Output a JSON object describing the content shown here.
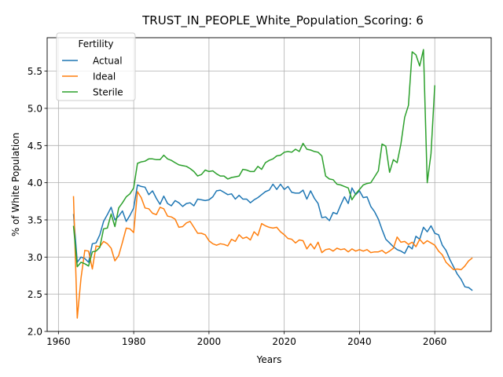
{
  "chart_data": {
    "type": "line",
    "title": "TRUST_IN_PEOPLE_White_Population_Scoring: 6",
    "xlabel": "Years",
    "ylabel": "% of White Population",
    "xlim": [
      1957,
      2075
    ],
    "ylim": [
      2.0,
      5.95
    ],
    "xticks": [
      1960,
      1980,
      2000,
      2020,
      2040,
      2060
    ],
    "yticks": [
      2.0,
      2.5,
      3.0,
      3.5,
      4.0,
      4.5,
      5.0,
      5.5
    ],
    "grid": true,
    "legend": {
      "title": "Fertility",
      "placement": "top-left"
    },
    "series": [
      {
        "name": "Actual",
        "color": "#1f77b4",
        "points": [
          [
            1964,
            3.58
          ],
          [
            1965,
            2.93
          ],
          [
            1966,
            3.0
          ],
          [
            1967,
            2.98
          ],
          [
            1968,
            2.93
          ],
          [
            1969,
            3.18
          ],
          [
            1970,
            3.19
          ],
          [
            1971,
            3.3
          ],
          [
            1972,
            3.48
          ],
          [
            1973,
            3.57
          ],
          [
            1974,
            3.67
          ],
          [
            1975,
            3.5
          ],
          [
            1976,
            3.55
          ],
          [
            1977,
            3.62
          ],
          [
            1978,
            3.48
          ],
          [
            1979,
            3.56
          ],
          [
            1980,
            3.66
          ],
          [
            1981,
            3.97
          ],
          [
            1982,
            3.95
          ],
          [
            1983,
            3.94
          ],
          [
            1984,
            3.84
          ],
          [
            1985,
            3.89
          ],
          [
            1986,
            3.79
          ],
          [
            1987,
            3.71
          ],
          [
            1988,
            3.82
          ],
          [
            1989,
            3.72
          ],
          [
            1990,
            3.69
          ],
          [
            1991,
            3.76
          ],
          [
            1992,
            3.73
          ],
          [
            1993,
            3.68
          ],
          [
            1994,
            3.72
          ],
          [
            1995,
            3.73
          ],
          [
            1996,
            3.69
          ],
          [
            1997,
            3.78
          ],
          [
            1998,
            3.77
          ],
          [
            1999,
            3.76
          ],
          [
            2000,
            3.77
          ],
          [
            2001,
            3.81
          ],
          [
            2002,
            3.89
          ],
          [
            2003,
            3.9
          ],
          [
            2004,
            3.87
          ],
          [
            2005,
            3.84
          ],
          [
            2006,
            3.85
          ],
          [
            2007,
            3.78
          ],
          [
            2008,
            3.83
          ],
          [
            2009,
            3.78
          ],
          [
            2010,
            3.78
          ],
          [
            2011,
            3.73
          ],
          [
            2012,
            3.77
          ],
          [
            2013,
            3.8
          ],
          [
            2014,
            3.84
          ],
          [
            2015,
            3.88
          ],
          [
            2016,
            3.9
          ],
          [
            2017,
            3.98
          ],
          [
            2018,
            3.91
          ],
          [
            2019,
            3.98
          ],
          [
            2020,
            3.91
          ],
          [
            2021,
            3.95
          ],
          [
            2022,
            3.87
          ],
          [
            2023,
            3.86
          ],
          [
            2024,
            3.86
          ],
          [
            2025,
            3.9
          ],
          [
            2026,
            3.78
          ],
          [
            2027,
            3.89
          ],
          [
            2028,
            3.79
          ],
          [
            2029,
            3.72
          ],
          [
            2030,
            3.53
          ],
          [
            2031,
            3.54
          ],
          [
            2032,
            3.49
          ],
          [
            2033,
            3.6
          ],
          [
            2034,
            3.58
          ],
          [
            2035,
            3.7
          ],
          [
            2036,
            3.81
          ],
          [
            2037,
            3.72
          ],
          [
            2038,
            3.93
          ],
          [
            2039,
            3.84
          ],
          [
            2040,
            3.89
          ],
          [
            2041,
            3.8
          ],
          [
            2042,
            3.81
          ],
          [
            2043,
            3.68
          ],
          [
            2044,
            3.61
          ],
          [
            2045,
            3.51
          ],
          [
            2046,
            3.37
          ],
          [
            2047,
            3.24
          ],
          [
            2048,
            3.19
          ],
          [
            2049,
            3.14
          ],
          [
            2050,
            3.1
          ],
          [
            2051,
            3.08
          ],
          [
            2052,
            3.05
          ],
          [
            2053,
            3.15
          ],
          [
            2054,
            3.11
          ],
          [
            2055,
            3.28
          ],
          [
            2056,
            3.24
          ],
          [
            2057,
            3.4
          ],
          [
            2058,
            3.34
          ],
          [
            2059,
            3.42
          ],
          [
            2060,
            3.32
          ],
          [
            2061,
            3.3
          ],
          [
            2062,
            3.16
          ],
          [
            2063,
            3.09
          ],
          [
            2064,
            2.97
          ],
          [
            2065,
            2.87
          ],
          [
            2066,
            2.77
          ],
          [
            2067,
            2.7
          ],
          [
            2068,
            2.6
          ],
          [
            2069,
            2.59
          ],
          [
            2070,
            2.55
          ]
        ]
      },
      {
        "name": "Ideal",
        "color": "#ff7f0e",
        "points": [
          [
            1964,
            3.82
          ],
          [
            1965,
            2.18
          ],
          [
            1966,
            2.72
          ],
          [
            1967,
            3.09
          ],
          [
            1968,
            3.08
          ],
          [
            1969,
            2.84
          ],
          [
            1970,
            3.15
          ],
          [
            1971,
            3.14
          ],
          [
            1972,
            3.21
          ],
          [
            1973,
            3.18
          ],
          [
            1974,
            3.12
          ],
          [
            1975,
            2.95
          ],
          [
            1976,
            3.02
          ],
          [
            1977,
            3.2
          ],
          [
            1978,
            3.39
          ],
          [
            1979,
            3.38
          ],
          [
            1980,
            3.33
          ],
          [
            1981,
            3.88
          ],
          [
            1982,
            3.8
          ],
          [
            1983,
            3.66
          ],
          [
            1984,
            3.65
          ],
          [
            1985,
            3.59
          ],
          [
            1986,
            3.57
          ],
          [
            1987,
            3.67
          ],
          [
            1988,
            3.65
          ],
          [
            1989,
            3.55
          ],
          [
            1990,
            3.54
          ],
          [
            1991,
            3.51
          ],
          [
            1992,
            3.4
          ],
          [
            1993,
            3.41
          ],
          [
            1994,
            3.46
          ],
          [
            1995,
            3.48
          ],
          [
            1996,
            3.4
          ],
          [
            1997,
            3.32
          ],
          [
            1998,
            3.32
          ],
          [
            1999,
            3.3
          ],
          [
            2000,
            3.22
          ],
          [
            2001,
            3.18
          ],
          [
            2002,
            3.16
          ],
          [
            2003,
            3.18
          ],
          [
            2004,
            3.17
          ],
          [
            2005,
            3.15
          ],
          [
            2006,
            3.24
          ],
          [
            2007,
            3.21
          ],
          [
            2008,
            3.3
          ],
          [
            2009,
            3.25
          ],
          [
            2010,
            3.27
          ],
          [
            2011,
            3.23
          ],
          [
            2012,
            3.34
          ],
          [
            2013,
            3.29
          ],
          [
            2014,
            3.45
          ],
          [
            2015,
            3.42
          ],
          [
            2016,
            3.4
          ],
          [
            2017,
            3.39
          ],
          [
            2018,
            3.4
          ],
          [
            2019,
            3.34
          ],
          [
            2020,
            3.3
          ],
          [
            2021,
            3.25
          ],
          [
            2022,
            3.24
          ],
          [
            2023,
            3.19
          ],
          [
            2024,
            3.23
          ],
          [
            2025,
            3.22
          ],
          [
            2026,
            3.11
          ],
          [
            2027,
            3.18
          ],
          [
            2028,
            3.11
          ],
          [
            2029,
            3.2
          ],
          [
            2030,
            3.06
          ],
          [
            2031,
            3.1
          ],
          [
            2032,
            3.11
          ],
          [
            2033,
            3.08
          ],
          [
            2034,
            3.12
          ],
          [
            2035,
            3.1
          ],
          [
            2036,
            3.11
          ],
          [
            2037,
            3.07
          ],
          [
            2038,
            3.11
          ],
          [
            2039,
            3.08
          ],
          [
            2040,
            3.1
          ],
          [
            2041,
            3.08
          ],
          [
            2042,
            3.1
          ],
          [
            2043,
            3.06
          ],
          [
            2044,
            3.07
          ],
          [
            2045,
            3.07
          ],
          [
            2046,
            3.09
          ],
          [
            2047,
            3.05
          ],
          [
            2048,
            3.08
          ],
          [
            2049,
            3.12
          ],
          [
            2050,
            3.27
          ],
          [
            2051,
            3.2
          ],
          [
            2052,
            3.21
          ],
          [
            2053,
            3.17
          ],
          [
            2054,
            3.2
          ],
          [
            2055,
            3.14
          ],
          [
            2056,
            3.24
          ],
          [
            2057,
            3.18
          ],
          [
            2058,
            3.22
          ],
          [
            2059,
            3.19
          ],
          [
            2060,
            3.16
          ],
          [
            2061,
            3.08
          ],
          [
            2062,
            3.03
          ],
          [
            2063,
            2.93
          ],
          [
            2064,
            2.88
          ],
          [
            2065,
            2.83
          ],
          [
            2066,
            2.84
          ],
          [
            2067,
            2.83
          ],
          [
            2068,
            2.88
          ],
          [
            2069,
            2.95
          ],
          [
            2070,
            2.99
          ]
        ]
      },
      {
        "name": "Sterile",
        "color": "#2ca02c",
        "points": [
          [
            1964,
            3.42
          ],
          [
            1965,
            2.87
          ],
          [
            1966,
            2.93
          ],
          [
            1967,
            2.91
          ],
          [
            1968,
            2.88
          ],
          [
            1969,
            3.07
          ],
          [
            1970,
            3.08
          ],
          [
            1971,
            3.13
          ],
          [
            1972,
            3.38
          ],
          [
            1973,
            3.39
          ],
          [
            1974,
            3.58
          ],
          [
            1975,
            3.41
          ],
          [
            1976,
            3.66
          ],
          [
            1977,
            3.73
          ],
          [
            1978,
            3.81
          ],
          [
            1979,
            3.85
          ],
          [
            1980,
            3.93
          ],
          [
            1981,
            4.26
          ],
          [
            1982,
            4.28
          ],
          [
            1983,
            4.29
          ],
          [
            1984,
            4.32
          ],
          [
            1985,
            4.32
          ],
          [
            1986,
            4.31
          ],
          [
            1987,
            4.31
          ],
          [
            1988,
            4.37
          ],
          [
            1989,
            4.32
          ],
          [
            1990,
            4.3
          ],
          [
            1991,
            4.27
          ],
          [
            1992,
            4.24
          ],
          [
            1993,
            4.23
          ],
          [
            1994,
            4.22
          ],
          [
            1995,
            4.19
          ],
          [
            1996,
            4.15
          ],
          [
            1997,
            4.09
          ],
          [
            1998,
            4.11
          ],
          [
            1999,
            4.17
          ],
          [
            2000,
            4.15
          ],
          [
            2001,
            4.16
          ],
          [
            2002,
            4.12
          ],
          [
            2003,
            4.09
          ],
          [
            2004,
            4.09
          ],
          [
            2005,
            4.05
          ],
          [
            2006,
            4.07
          ],
          [
            2007,
            4.08
          ],
          [
            2008,
            4.09
          ],
          [
            2009,
            4.18
          ],
          [
            2010,
            4.17
          ],
          [
            2011,
            4.15
          ],
          [
            2012,
            4.15
          ],
          [
            2013,
            4.22
          ],
          [
            2014,
            4.18
          ],
          [
            2015,
            4.27
          ],
          [
            2016,
            4.3
          ],
          [
            2017,
            4.32
          ],
          [
            2018,
            4.36
          ],
          [
            2019,
            4.37
          ],
          [
            2020,
            4.41
          ],
          [
            2021,
            4.42
          ],
          [
            2022,
            4.41
          ],
          [
            2023,
            4.45
          ],
          [
            2024,
            4.42
          ],
          [
            2025,
            4.53
          ],
          [
            2026,
            4.45
          ],
          [
            2027,
            4.44
          ],
          [
            2028,
            4.42
          ],
          [
            2029,
            4.41
          ],
          [
            2030,
            4.36
          ],
          [
            2031,
            4.09
          ],
          [
            2032,
            4.05
          ],
          [
            2033,
            4.04
          ],
          [
            2034,
            3.98
          ],
          [
            2035,
            3.97
          ],
          [
            2036,
            3.95
          ],
          [
            2037,
            3.93
          ],
          [
            2038,
            3.77
          ],
          [
            2039,
            3.85
          ],
          [
            2040,
            3.91
          ],
          [
            2041,
            3.97
          ],
          [
            2042,
            3.99
          ],
          [
            2043,
            4.0
          ],
          [
            2044,
            4.08
          ],
          [
            2045,
            4.16
          ],
          [
            2046,
            4.52
          ],
          [
            2047,
            4.49
          ],
          [
            2048,
            4.14
          ],
          [
            2049,
            4.31
          ],
          [
            2050,
            4.27
          ],
          [
            2051,
            4.52
          ],
          [
            2052,
            4.88
          ],
          [
            2053,
            5.04
          ],
          [
            2054,
            5.76
          ],
          [
            2055,
            5.72
          ],
          [
            2056,
            5.57
          ],
          [
            2057,
            5.79
          ],
          [
            2058,
            4.0
          ],
          [
            2059,
            4.39
          ],
          [
            2060,
            5.31
          ]
        ]
      }
    ]
  }
}
